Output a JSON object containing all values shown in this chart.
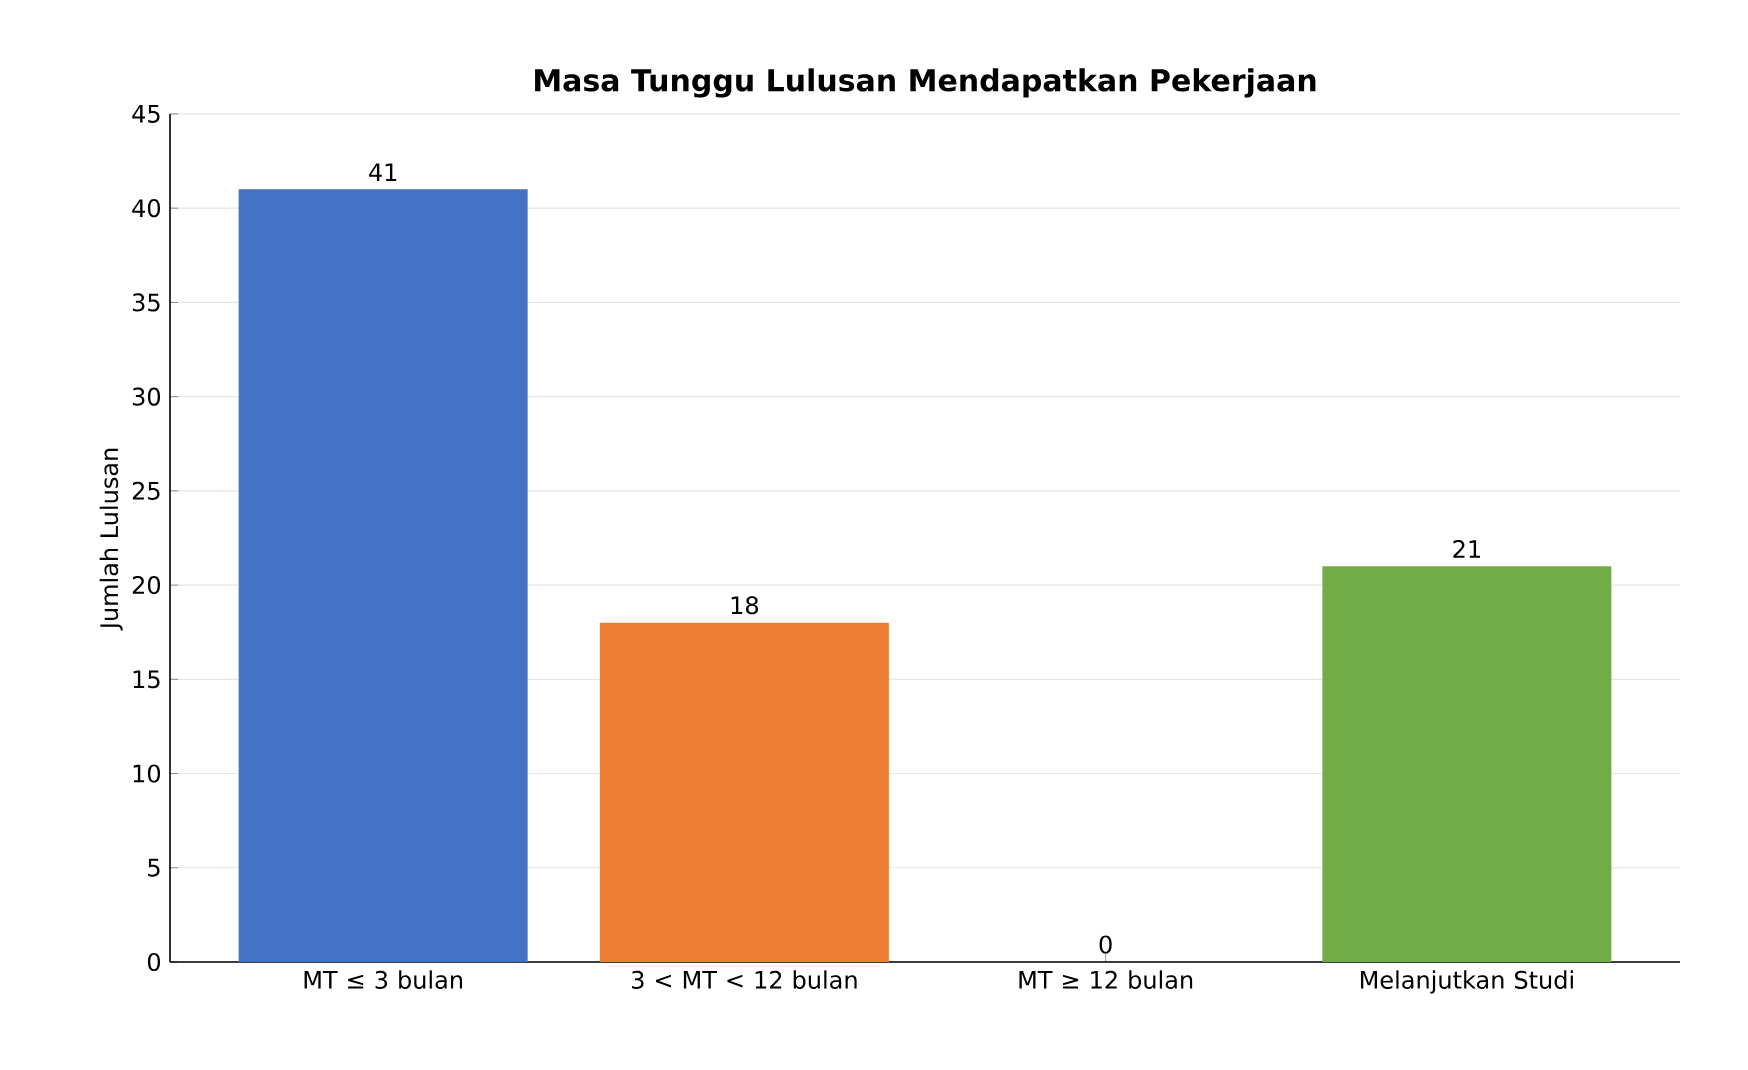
{
  "chart_data": {
    "type": "bar",
    "title": "Masa Tunggu Lulusan Mendapatkan Pekerjaan",
    "ylabel": "Jumlah Lulusan",
    "categories": [
      "MT ≤ 3 bulan",
      "3 < MT < 12 bulan",
      "MT ≥ 12 bulan",
      "Melanjutkan Studi"
    ],
    "values": [
      41,
      18,
      0,
      21
    ],
    "colors": [
      "#4472c4",
      "#ed7d31",
      "#a5a5a5",
      "#70ad47"
    ],
    "ylim": [
      0,
      45
    ],
    "yticks": [
      0,
      5,
      10,
      15,
      20,
      25,
      30,
      35,
      40,
      45
    ],
    "grid": "y",
    "data_labels": true
  }
}
